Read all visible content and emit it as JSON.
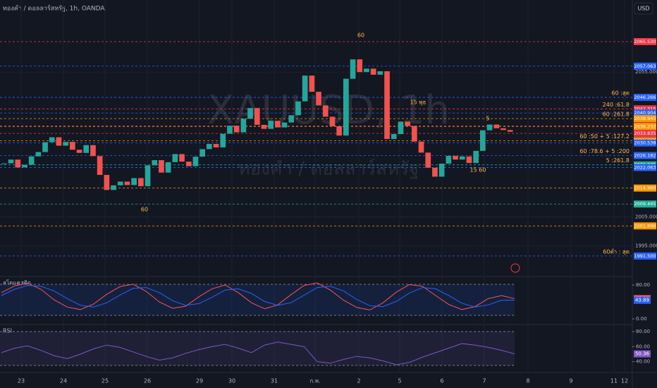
{
  "chart_data": [
    {
      "type": "candlestick",
      "title": "ทองคำ / ดอลลาร์สหรัฐ, 1h, OANDA",
      "watermark": "XAUUSD, 1h",
      "watermark_subtitle": "ทองคำ / ดอลลาร์สหรัฐ",
      "currency": "USD",
      "categories": [
        "23",
        "24",
        "25",
        "26",
        "29",
        "30",
        "31",
        "ก.พ.",
        "2",
        "5",
        "6",
        "7",
        "8",
        "9",
        "11",
        "12"
      ],
      "closes": [
        2023.5,
        2024.8,
        2022.1,
        2023.0,
        2025.9,
        2027.4,
        2030.8,
        2032.5,
        2029.6,
        2030.9,
        2028.2,
        2027.1,
        2029.8,
        2026.0,
        2019.5,
        2014.3,
        2015.9,
        2017.2,
        2016.0,
        2018.4,
        2015.6,
        2022.8,
        2024.6,
        2020.3,
        2023.9,
        2026.7,
        2024.1,
        2022.5,
        2025.8,
        2028.4,
        2030.2,
        2029.0,
        2033.7,
        2036.5,
        2034.2,
        2038.9,
        2042.6,
        2036.8,
        2035.4,
        2038.2,
        2035.9,
        2037.6,
        2040.1,
        2044.9,
        2053.8,
        2048.2,
        2043.5,
        2039.6,
        2036.3,
        2033.1,
        2052.7,
        2059.4,
        2055.0,
        2056.2,
        2054.1,
        2055.3,
        2031.9,
        2033.6,
        2037.9,
        2036.4,
        2031.0,
        2027.2,
        2022.0,
        2018.9,
        2023.4,
        2026.1,
        2024.8,
        2025.9,
        2023.6,
        2027.8,
        2034.9,
        2036.9,
        2035.6,
        2035.0,
        2034.4
      ],
      "up_color": "#26a69a",
      "down_color": "#ef5350",
      "ylim": [
        1984.9,
        2079.9
      ],
      "yticks": [
        {
          "value": 2055,
          "label": "2055.000"
        },
        {
          "value": 2005,
          "label": "2005.000"
        },
        {
          "value": 1995,
          "label": "1995.000"
        }
      ],
      "levels": [
        {
          "value": 2065.53,
          "label": "2065.530",
          "color": "#f23645"
        },
        {
          "value": 2057.063,
          "label": "2057.063",
          "color": "#2962ff"
        },
        {
          "value": 2046.266,
          "label": "2046.266",
          "color": "#2962ff",
          "note": "60 :สุด"
        },
        {
          "value": 2042.315,
          "label": "2042.315",
          "color": "#f23645",
          "note": "240 :61.8"
        },
        {
          "value": 2040.904,
          "label": "2040.904",
          "color": "#2962ff"
        },
        {
          "value": 2038.945,
          "label": "2038.945",
          "color": "#ff9800",
          "note": "60 :261.8"
        },
        {
          "value": 2036.445,
          "label": "2036.445",
          "color": "#f23645"
        },
        {
          "value": 2036.232,
          "label": "2036.232",
          "color": "#ff9800"
        },
        {
          "value": 2033.835,
          "label": "2033.835",
          "color": "#f23645"
        },
        {
          "value": 2031.305,
          "label": "2031.305",
          "color": "#ff9800",
          "note": "60 :50 + 5 :127.2"
        },
        {
          "value": 2030.538,
          "label": "2030.538",
          "color": "#2962ff"
        },
        {
          "value": 2026.182,
          "label": "2026.182",
          "color": "#2962ff",
          "note": "60 :78.6 + 5 :200"
        },
        {
          "value": 2022.975,
          "label": "2022.975",
          "color": "#22ab94",
          "note": "5 :261.8"
        },
        {
          "value": 2022.063,
          "label": "2022.063",
          "color": "#2962ff"
        },
        {
          "value": 2014.96,
          "label": "2014.960",
          "color": "#ff9800"
        },
        {
          "value": 2009.445,
          "label": "2009.445",
          "color": "#22ab94"
        },
        {
          "value": 2001.89,
          "label": "2001.890",
          "color": "#ff9800"
        },
        {
          "value": 1991.5,
          "label": "1991.500",
          "color": "#2962ff",
          "note": "60ต่ำ : สุด"
        }
      ],
      "annotations": [
        "60",
        "60",
        "15 พุธ",
        "15 60",
        "5"
      ]
    },
    {
      "type": "line",
      "title": "สโตแคสติก",
      "ylim": [
        -5,
        95
      ],
      "yticks": [
        {
          "value": 80,
          "label": "80.00"
        },
        {
          "value": 0,
          "label": "0.00"
        }
      ],
      "series": [
        {
          "color": "#f7525f",
          "values": [
            62,
            78,
            84,
            70,
            45,
            28,
            22,
            35,
            58,
            76,
            82,
            65,
            40,
            25,
            30,
            52,
            71,
            80,
            62,
            38,
            24,
            33,
            57,
            79,
            85,
            68,
            44,
            27,
            21,
            38,
            63,
            81,
            77,
            55,
            34,
            22,
            29,
            48,
            55,
            47.83
          ],
          "value_label": "47.83"
        },
        {
          "color": "#2962ff",
          "values": [
            55,
            70,
            79,
            77,
            66,
            48,
            32,
            28,
            38,
            56,
            72,
            74,
            62,
            43,
            32,
            36,
            51,
            68,
            71,
            60,
            41,
            32,
            38,
            56,
            74,
            77,
            66,
            46,
            31,
            29,
            41,
            61,
            74,
            71,
            55,
            37,
            28,
            33,
            44,
            43.89
          ],
          "value_label": "43.89"
        }
      ]
    },
    {
      "type": "line",
      "title": "RSI",
      "ylim": [
        27.5,
        87.5
      ],
      "yticks": [
        {
          "value": 80,
          "label": "80.00"
        },
        {
          "value": 60,
          "label": "60.00"
        },
        {
          "value": 40,
          "label": "40.00"
        }
      ],
      "series": [
        {
          "color": "#7e57c2",
          "values": [
            52,
            58,
            61,
            55,
            48,
            44,
            50,
            57,
            62,
            59,
            53,
            47,
            42,
            45,
            51,
            56,
            60,
            63,
            58,
            52,
            62,
            66,
            63,
            60,
            40,
            38,
            43,
            47,
            45,
            41,
            36,
            39,
            46,
            52,
            58,
            64,
            62,
            59,
            55,
            50.36
          ],
          "value_label": "50.36"
        }
      ]
    }
  ]
}
